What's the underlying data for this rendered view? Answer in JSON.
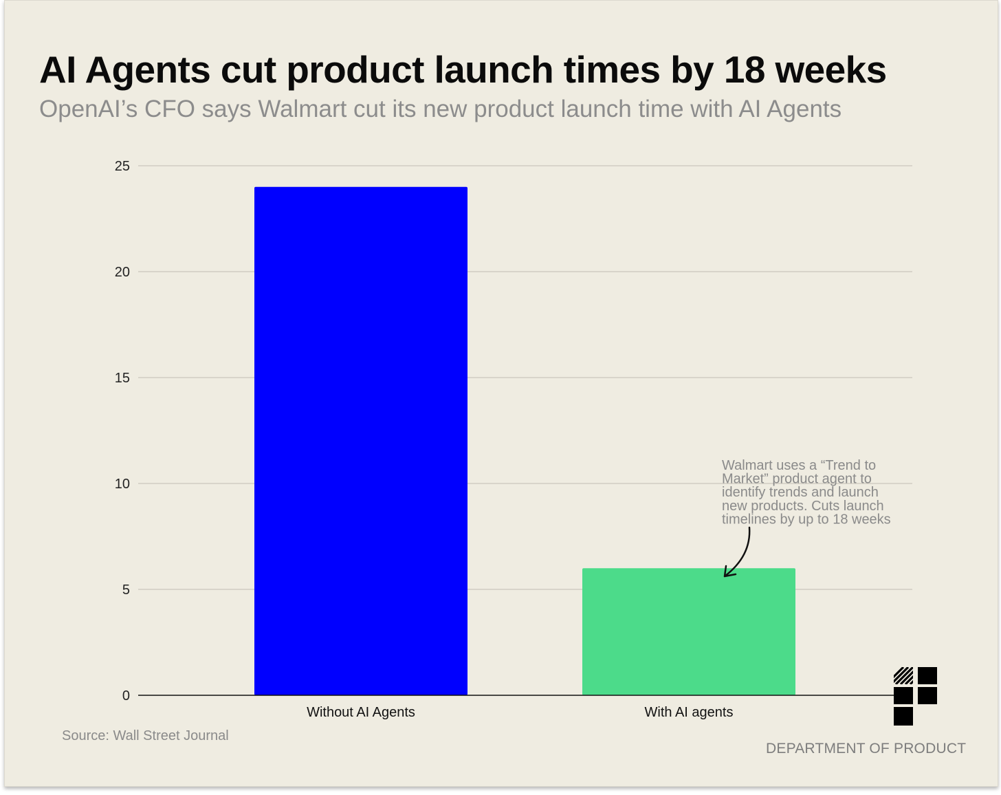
{
  "chart_data": {
    "type": "bar",
    "title": "AI Agents cut product launch times by 18 weeks",
    "subtitle": "OpenAI’s CFO says Walmart cut its new product launch time with AI Agents",
    "categories": [
      "Without AI Agents",
      "With AI agents"
    ],
    "values": [
      24,
      6
    ],
    "colors": [
      "#0000ff",
      "#4cdb8a"
    ],
    "ylim": [
      0,
      25
    ],
    "yticks": [
      0,
      5,
      10,
      15,
      20,
      25
    ],
    "xlabel": "",
    "ylabel": "",
    "grid": true,
    "annotation": {
      "lines": [
        "Walmart uses a “Trend to",
        "Market” product agent to",
        "identify trends and launch",
        "new products. Cuts launch",
        "timelines by up to 18 weeks"
      ],
      "target_category": "With AI agents"
    }
  },
  "footer": {
    "source": "Source: Wall Street Journal",
    "brand": "DEPARTMENT OF PRODUCT"
  },
  "icons": {
    "logo": "department-of-product-logo"
  }
}
